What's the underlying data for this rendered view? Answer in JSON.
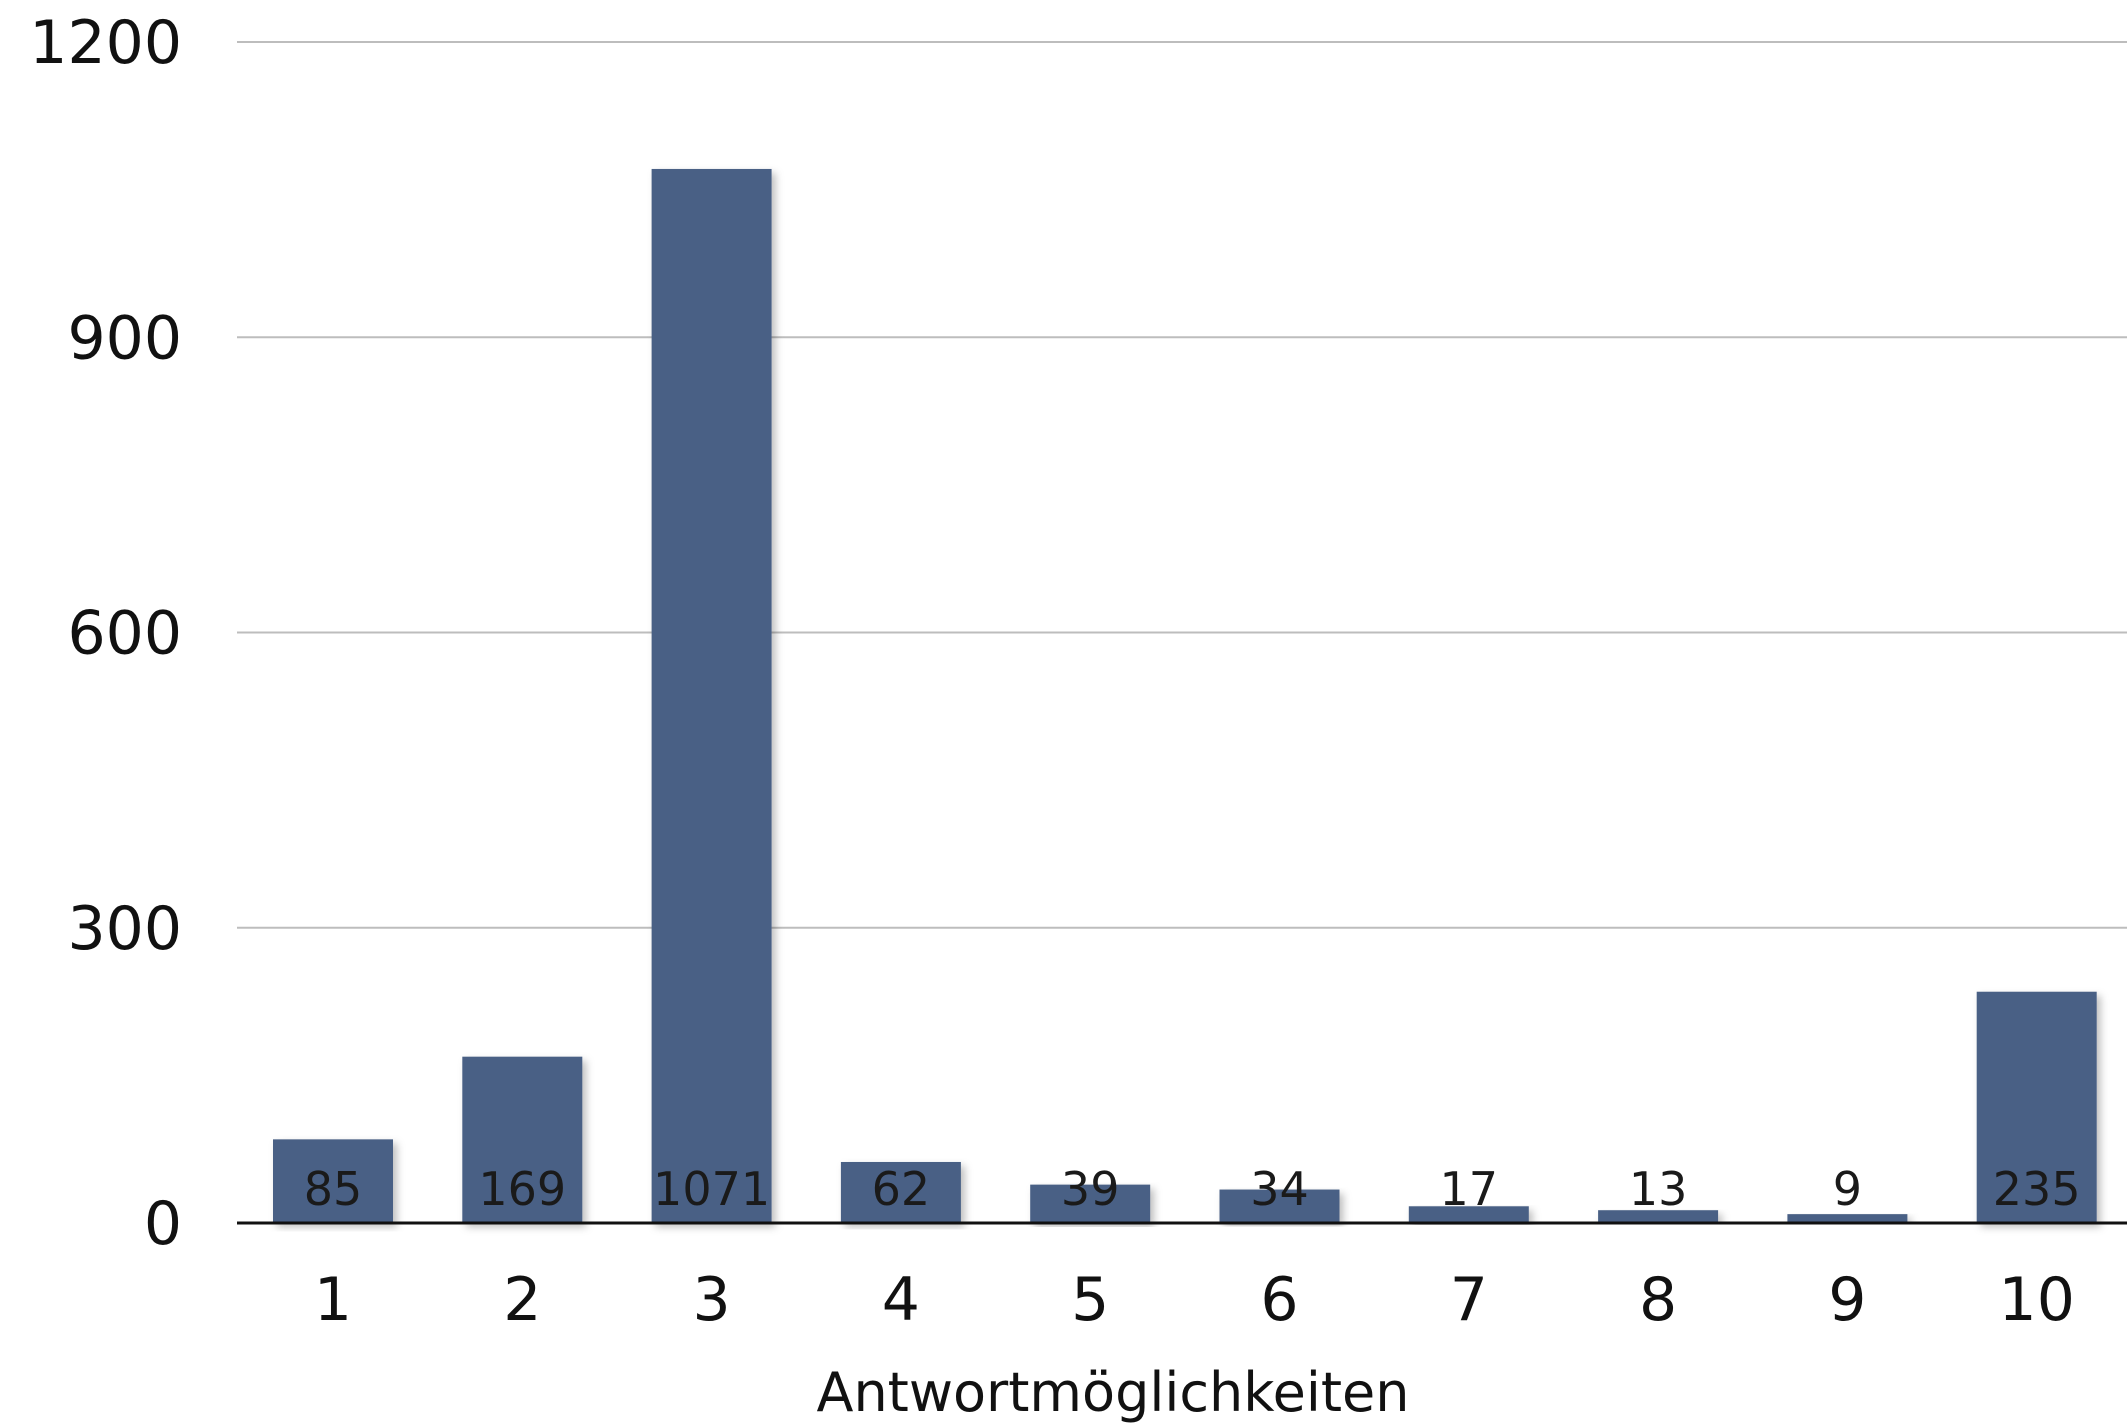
{
  "chart_data": {
    "type": "bar",
    "categories": [
      "1",
      "2",
      "3",
      "4",
      "5",
      "6",
      "7",
      "8",
      "9",
      "10"
    ],
    "values": [
      85,
      169,
      1071,
      62,
      39,
      34,
      17,
      13,
      9,
      235
    ],
    "data_labels": [
      "85",
      "169",
      "1071",
      "62",
      "39",
      "34",
      "17",
      "13",
      "9",
      "235"
    ],
    "title": "",
    "xlabel": "Antwortmöglichkeiten",
    "ylabel": "",
    "ylim": [
      0,
      1200
    ],
    "yticks": [
      0,
      300,
      600,
      900,
      1200
    ],
    "ytick_labels": [
      "0",
      "300",
      "600",
      "900",
      "1200"
    ],
    "grid": true,
    "legend": "none",
    "bar_color": "#4a6185"
  }
}
